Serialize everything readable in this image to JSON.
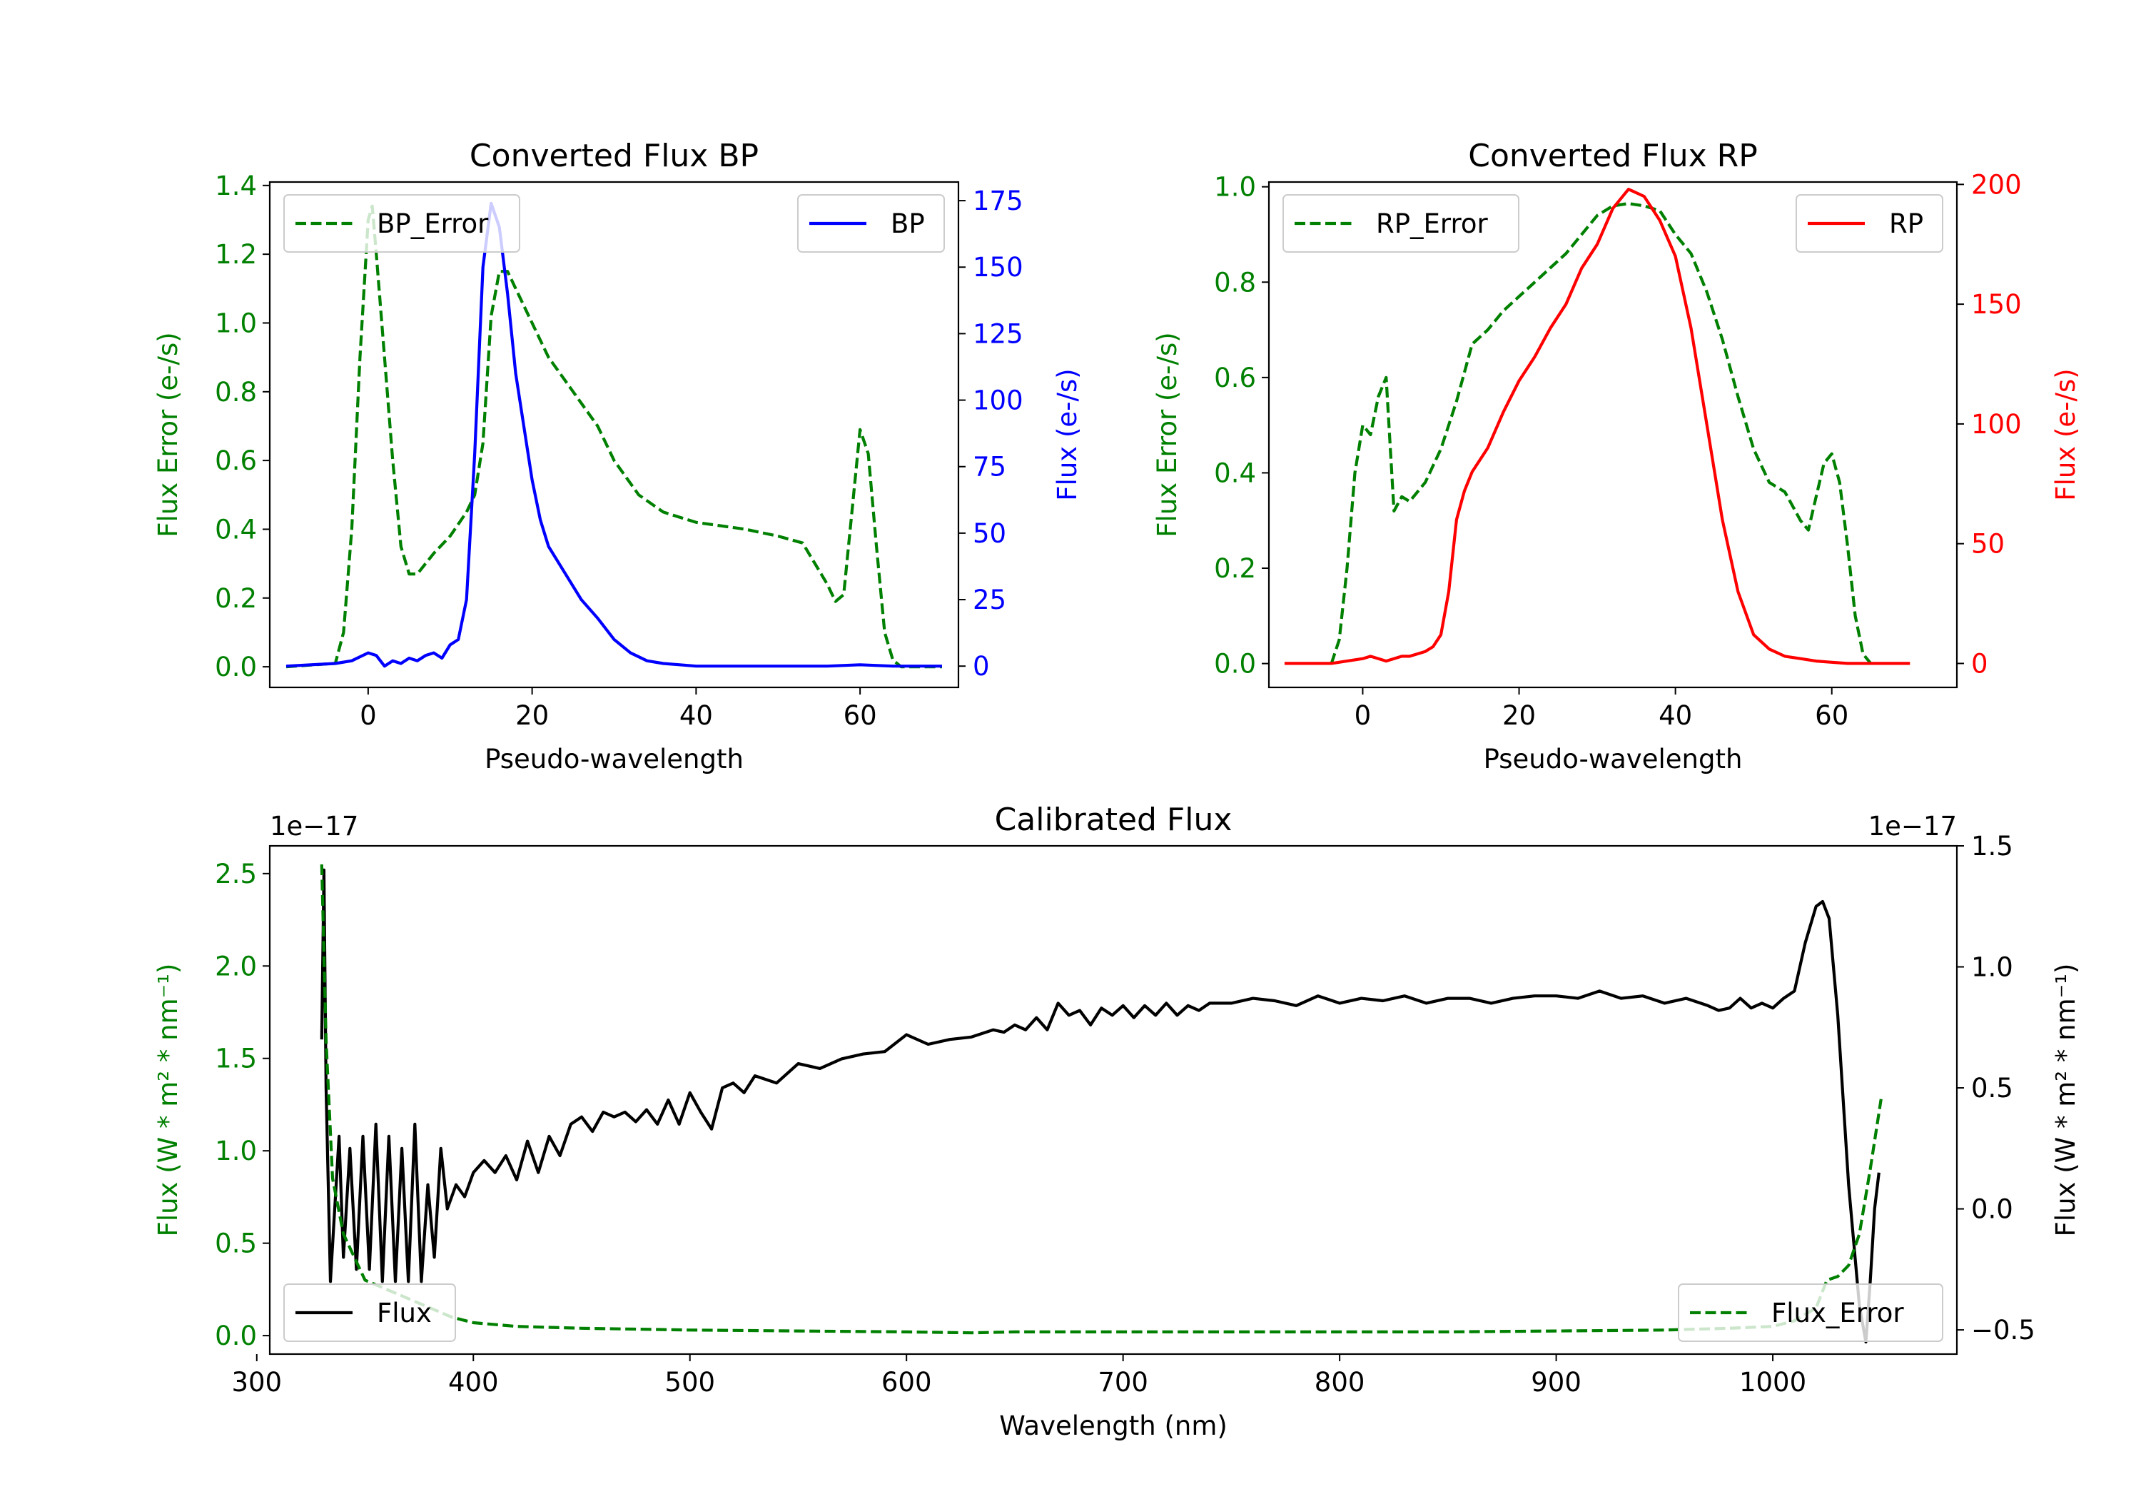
{
  "figure": {
    "background": "#ffffff"
  },
  "chart_data": [
    {
      "id": "bp",
      "type": "line",
      "title": "Converted Flux BP",
      "xlabel": "Pseudo-wavelength",
      "ylabel_left": "Flux Error (e-/s)",
      "ylabel_right": "Flux (e-/s)",
      "xlim": [
        -12,
        72
      ],
      "ylim_left": [
        -0.06,
        1.41
      ],
      "ylim_right": [
        -8,
        182
      ],
      "xticks": [
        0,
        20,
        40,
        60
      ],
      "yticks_left": [
        0.0,
        0.2,
        0.4,
        0.6,
        0.8,
        1.0,
        1.2,
        1.4
      ],
      "yticks_right": [
        0,
        25,
        50,
        75,
        100,
        125,
        150,
        175
      ],
      "left_tick_color": "#008000",
      "right_tick_color": "#0000ff",
      "legend_left": {
        "label": "BP_Error",
        "position": "upper left"
      },
      "legend_right": {
        "label": "BP",
        "position": "upper right"
      },
      "series": [
        {
          "name": "BP_Error",
          "axis": "left",
          "color": "#008000",
          "dashed": true,
          "x": [
            -10,
            -4,
            -3,
            -2,
            -1,
            0,
            0.5,
            1,
            2,
            3,
            4,
            5,
            6,
            7,
            8,
            10,
            12,
            13,
            14,
            15,
            16,
            17,
            18,
            20,
            22,
            25,
            28,
            30,
            33,
            36,
            40,
            43,
            46,
            50,
            53,
            54,
            55,
            56,
            57,
            58,
            59,
            60,
            61,
            62,
            63,
            64,
            65,
            66,
            70
          ],
          "y": [
            0.0,
            0.01,
            0.1,
            0.4,
            0.9,
            1.3,
            1.34,
            1.2,
            0.9,
            0.6,
            0.35,
            0.27,
            0.27,
            0.3,
            0.33,
            0.38,
            0.45,
            0.5,
            0.65,
            1.02,
            1.15,
            1.15,
            1.1,
            1.0,
            0.9,
            0.8,
            0.7,
            0.6,
            0.5,
            0.45,
            0.42,
            0.41,
            0.4,
            0.38,
            0.36,
            0.32,
            0.28,
            0.24,
            0.19,
            0.21,
            0.45,
            0.69,
            0.62,
            0.35,
            0.1,
            0.02,
            0.0,
            0.0,
            0.0
          ]
        },
        {
          "name": "BP",
          "axis": "right",
          "color": "#0000ff",
          "dashed": false,
          "x": [
            -10,
            -4,
            -2,
            0,
            1,
            2,
            3,
            4,
            5,
            6,
            7,
            8,
            9,
            10,
            11,
            12,
            13,
            14,
            15,
            16,
            17,
            18,
            19,
            20,
            21,
            22,
            24,
            26,
            28,
            30,
            32,
            34,
            36,
            38,
            40,
            44,
            50,
            56,
            60,
            64,
            70
          ],
          "y": [
            0,
            1,
            2,
            5,
            4,
            0,
            2,
            1,
            3,
            2,
            4,
            5,
            3,
            8,
            10,
            25,
            80,
            150,
            174,
            165,
            140,
            110,
            90,
            70,
            55,
            45,
            35,
            25,
            18,
            10,
            5,
            2,
            1,
            0.5,
            0,
            0,
            0,
            0,
            0.5,
            0,
            0
          ]
        }
      ]
    },
    {
      "id": "rp",
      "type": "line",
      "title": "Converted Flux RP",
      "xlabel": "Pseudo-wavelength",
      "ylabel_left": "Flux Error (e-/s)",
      "ylabel_right": "Flux (e-/s)",
      "xlim": [
        -12,
        76
      ],
      "ylim_left": [
        -0.05,
        1.01
      ],
      "ylim_right": [
        -10,
        201
      ],
      "xticks": [
        0,
        20,
        40,
        60
      ],
      "yticks_left": [
        0.0,
        0.2,
        0.4,
        0.6,
        0.8,
        1.0
      ],
      "yticks_right": [
        0,
        50,
        100,
        150,
        200
      ],
      "left_tick_color": "#008000",
      "right_tick_color": "#ff0000",
      "legend_left": {
        "label": "RP_Error",
        "position": "upper left"
      },
      "legend_right": {
        "label": "RP",
        "position": "upper right"
      },
      "series": [
        {
          "name": "RP_Error",
          "axis": "left",
          "color": "#008000",
          "dashed": true,
          "x": [
            -4,
            -3,
            -2,
            -1,
            0,
            1,
            2,
            3,
            4,
            5,
            6,
            8,
            10,
            12,
            14,
            16,
            18,
            20,
            22,
            24,
            26,
            28,
            30,
            32,
            34,
            36,
            38,
            40,
            42,
            44,
            46,
            48,
            50,
            52,
            54,
            55,
            56,
            57,
            58,
            59,
            60,
            61,
            62,
            63,
            64,
            65
          ],
          "y": [
            0.0,
            0.05,
            0.2,
            0.4,
            0.5,
            0.48,
            0.56,
            0.6,
            0.32,
            0.35,
            0.34,
            0.38,
            0.45,
            0.55,
            0.67,
            0.7,
            0.74,
            0.77,
            0.8,
            0.83,
            0.86,
            0.9,
            0.94,
            0.96,
            0.965,
            0.96,
            0.95,
            0.9,
            0.86,
            0.78,
            0.68,
            0.56,
            0.45,
            0.38,
            0.36,
            0.33,
            0.3,
            0.28,
            0.35,
            0.42,
            0.44,
            0.38,
            0.25,
            0.1,
            0.02,
            0.0
          ]
        },
        {
          "name": "RP",
          "axis": "right",
          "color": "#ff0000",
          "dashed": false,
          "x": [
            -10,
            -4,
            -2,
            0,
            1,
            2,
            3,
            4,
            5,
            6,
            8,
            9,
            10,
            11,
            12,
            13,
            14,
            16,
            18,
            20,
            22,
            24,
            26,
            28,
            30,
            32,
            34,
            36,
            38,
            40,
            42,
            44,
            46,
            48,
            50,
            52,
            54,
            56,
            58,
            60,
            62,
            64,
            66,
            70
          ],
          "y": [
            0,
            0,
            1,
            2,
            3,
            2,
            1,
            2,
            3,
            3,
            5,
            7,
            12,
            30,
            60,
            72,
            80,
            90,
            105,
            118,
            128,
            140,
            150,
            165,
            175,
            190,
            198,
            195,
            185,
            170,
            140,
            100,
            60,
            30,
            12,
            6,
            3,
            2,
            1,
            0.5,
            0,
            0,
            0,
            0
          ]
        }
      ]
    },
    {
      "id": "calibrated",
      "type": "line",
      "title": "Calibrated Flux",
      "xlabel": "Wavelength (nm)",
      "ylabel_left": "Flux (W * m² * nm⁻¹)",
      "ylabel_right": "Flux (W * m² * nm⁻¹)",
      "offset_left": "1e−17",
      "offset_right": "1e−17",
      "xlim": [
        306,
        1085
      ],
      "ylim_left": [
        -0.1,
        2.65
      ],
      "ylim_right": [
        -0.6,
        1.5
      ],
      "xticks": [
        300,
        400,
        500,
        600,
        700,
        800,
        900,
        1000
      ],
      "yticks_left": [
        "0.0",
        "0.5",
        "1.0",
        "1.5",
        "2.0",
        "2.5"
      ],
      "yticks_right": [
        "−0.5",
        "0.0",
        "0.5",
        "1.0",
        "1.5"
      ],
      "left_tick_color": "#008000",
      "right_tick_color": "#000000",
      "legend_left": {
        "label": "Flux",
        "position": "lower left"
      },
      "legend_right": {
        "label": "Flux_Error",
        "position": "lower right"
      },
      "series": [
        {
          "name": "Flux",
          "axis": "right",
          "color": "#000000",
          "dashed": false,
          "x": [
            330,
            331,
            332,
            334,
            336,
            338,
            340,
            343,
            346,
            349,
            352,
            355,
            358,
            361,
            364,
            367,
            370,
            373,
            376,
            379,
            382,
            385,
            388,
            392,
            396,
            400,
            405,
            410,
            415,
            420,
            425,
            430,
            435,
            440,
            445,
            450,
            455,
            460,
            465,
            470,
            475,
            480,
            485,
            490,
            495,
            500,
            505,
            510,
            515,
            520,
            525,
            530,
            540,
            550,
            560,
            570,
            580,
            590,
            600,
            610,
            620,
            630,
            640,
            645,
            650,
            655,
            660,
            665,
            670,
            675,
            680,
            685,
            690,
            695,
            700,
            705,
            710,
            715,
            720,
            725,
            730,
            735,
            740,
            750,
            760,
            770,
            780,
            790,
            800,
            810,
            820,
            830,
            840,
            850,
            860,
            870,
            880,
            890,
            900,
            910,
            920,
            930,
            940,
            950,
            960,
            970,
            975,
            980,
            985,
            990,
            995,
            1000,
            1005,
            1010,
            1015,
            1020,
            1023,
            1026,
            1030,
            1035,
            1040,
            1043,
            1045,
            1047,
            1049
          ],
          "y": [
            0.7,
            1.4,
            0.5,
            -0.3,
            0.0,
            0.3,
            -0.2,
            0.25,
            -0.25,
            0.3,
            -0.25,
            0.35,
            -0.3,
            0.3,
            -0.3,
            0.25,
            -0.3,
            0.35,
            -0.3,
            0.1,
            -0.2,
            0.25,
            0.0,
            0.1,
            0.05,
            0.15,
            0.2,
            0.15,
            0.22,
            0.12,
            0.28,
            0.15,
            0.3,
            0.22,
            0.35,
            0.38,
            0.32,
            0.4,
            0.38,
            0.4,
            0.36,
            0.41,
            0.35,
            0.45,
            0.35,
            0.48,
            0.4,
            0.33,
            0.5,
            0.52,
            0.48,
            0.55,
            0.52,
            0.6,
            0.58,
            0.62,
            0.64,
            0.65,
            0.72,
            0.68,
            0.7,
            0.71,
            0.74,
            0.73,
            0.76,
            0.74,
            0.79,
            0.74,
            0.85,
            0.8,
            0.82,
            0.76,
            0.83,
            0.8,
            0.84,
            0.79,
            0.84,
            0.8,
            0.85,
            0.8,
            0.84,
            0.82,
            0.85,
            0.85,
            0.87,
            0.86,
            0.84,
            0.88,
            0.85,
            0.87,
            0.86,
            0.88,
            0.85,
            0.87,
            0.87,
            0.85,
            0.87,
            0.88,
            0.88,
            0.87,
            0.9,
            0.87,
            0.88,
            0.85,
            0.87,
            0.84,
            0.82,
            0.83,
            0.87,
            0.83,
            0.85,
            0.83,
            0.87,
            0.9,
            1.1,
            1.25,
            1.27,
            1.2,
            0.8,
            0.1,
            -0.4,
            -0.55,
            -0.3,
            0.0,
            0.15
          ]
        },
        {
          "name": "Flux_Error",
          "axis": "left",
          "color": "#008000",
          "dashed": true,
          "x": [
            330,
            332,
            335,
            340,
            350,
            360,
            370,
            380,
            390,
            400,
            420,
            450,
            500,
            550,
            600,
            630,
            650,
            700,
            750,
            800,
            850,
            900,
            950,
            980,
            1000,
            1010,
            1020,
            1025,
            1030,
            1035,
            1040,
            1045,
            1050
          ],
          "y": [
            2.55,
            1.6,
            0.85,
            0.55,
            0.3,
            0.25,
            0.2,
            0.15,
            0.1,
            0.07,
            0.05,
            0.04,
            0.03,
            0.025,
            0.02,
            0.015,
            0.02,
            0.02,
            0.02,
            0.02,
            0.02,
            0.025,
            0.03,
            0.04,
            0.05,
            0.08,
            0.15,
            0.3,
            0.32,
            0.38,
            0.55,
            0.9,
            1.28
          ]
        }
      ]
    }
  ]
}
